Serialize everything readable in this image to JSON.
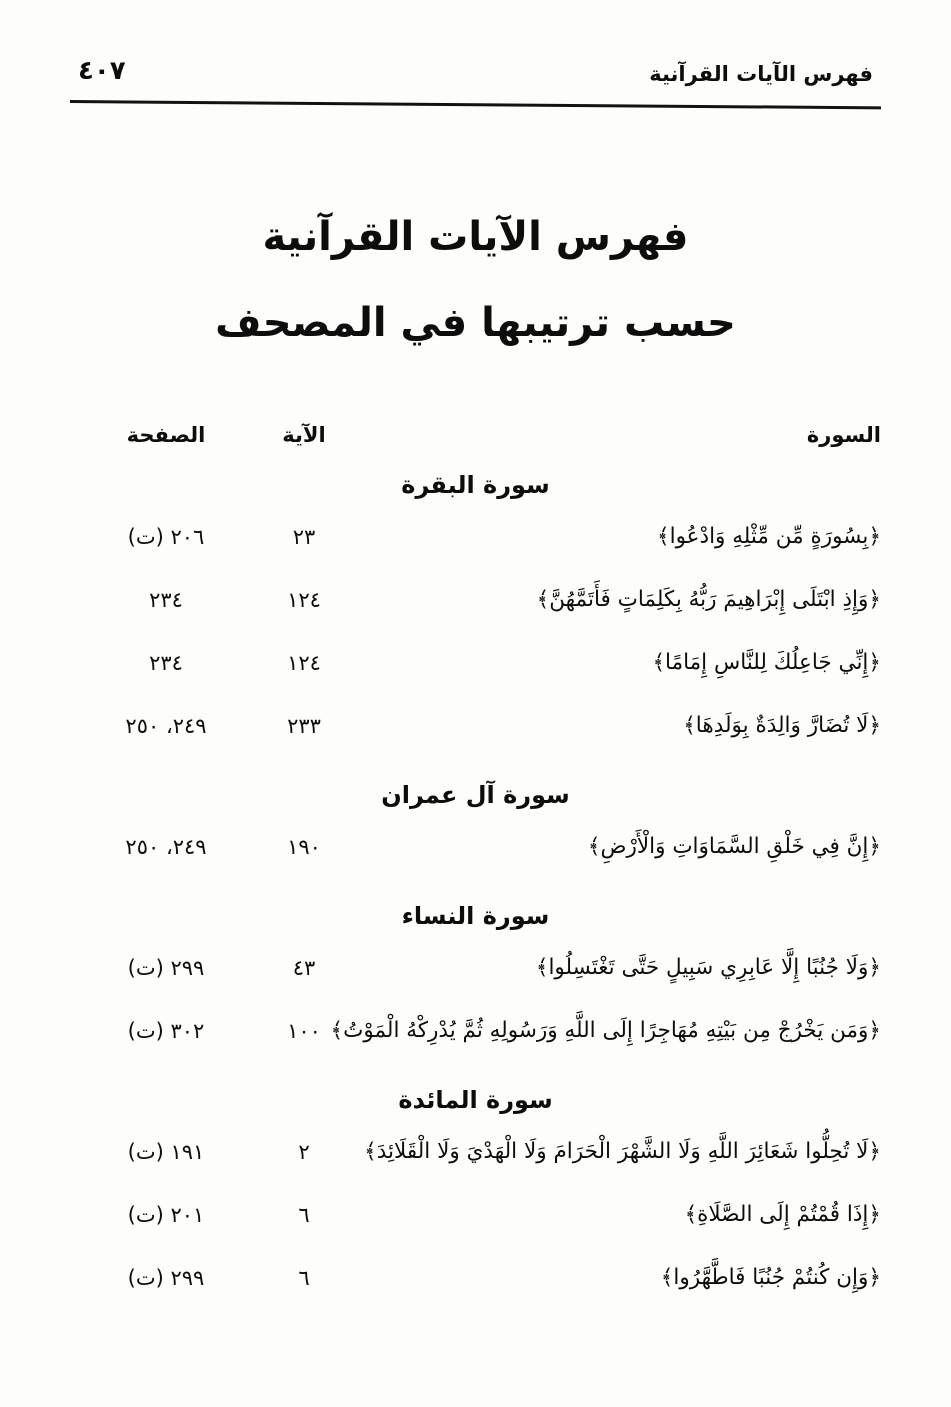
{
  "header": {
    "folio_number": "٤٠٧",
    "running_title": "فهرس الآيات القرآنية"
  },
  "title": {
    "line1": "فهرس الآيات القرآنية",
    "line2": "حسب ترتيبها في المصحف"
  },
  "columns": {
    "surah": "السورة",
    "aya": "الآية",
    "page": "الصفحة"
  },
  "sections": [
    {
      "name": "سورة البقرة",
      "rows": [
        {
          "verse": "﴿بِسُورَةٍ مِّن مِّثْلِهِ وَادْعُوا﴾",
          "aya": "٢٣",
          "page": "٢٠٦ (ت)"
        },
        {
          "verse": "﴿وَإِذِ ابْتَلَى إِبْرَاهِيمَ رَبُّهُ بِكَلِمَاتٍ فَأَتَمَّهُنَّ﴾",
          "aya": "١٢٤",
          "page": "٢٣٤"
        },
        {
          "verse": "﴿إِنِّي جَاعِلُكَ لِلنَّاسِ إِمَامًا﴾",
          "aya": "١٢٤",
          "page": "٢٣٤"
        },
        {
          "verse": "﴿لَا تُضَارَّ وَالِدَةٌ بِوَلَدِهَا﴾",
          "aya": "٢٣٣",
          "page": "٢٤٩، ٢٥٠"
        }
      ]
    },
    {
      "name": "سورة آل عمران",
      "rows": [
        {
          "verse": "﴿إِنَّ فِي خَلْقِ السَّمَاوَاتِ وَالْأَرْضِ﴾",
          "aya": "١٩٠",
          "page": "٢٤٩، ٢٥٠"
        }
      ]
    },
    {
      "name": "سورة النساء",
      "rows": [
        {
          "verse": "﴿وَلَا جُنُبًا إِلَّا عَابِرِي سَبِيلٍ حَتَّى تَغْتَسِلُوا﴾",
          "aya": "٤٣",
          "page": "٢٩٩ (ت)"
        },
        {
          "verse": "﴿وَمَن يَخْرُجْ مِن بَيْتِهِ مُهَاجِرًا إِلَى اللَّهِ وَرَسُولِهِ ثُمَّ يُدْرِكْهُ الْمَوْتُ﴾",
          "aya": "١٠٠",
          "page": "٣٠٢ (ت)"
        }
      ]
    },
    {
      "name": "سورة المائدة",
      "rows": [
        {
          "verse": "﴿لَا تُحِلُّوا شَعَائِرَ اللَّهِ وَلَا الشَّهْرَ الْحَرَامَ وَلَا الْهَدْيَ وَلَا الْقَلَائِدَ﴾",
          "aya": "٢",
          "page": "١٩١ (ت)"
        },
        {
          "verse": "﴿إِذَا قُمْتُمْ إِلَى الصَّلَاةِ﴾",
          "aya": "٦",
          "page": "٢٠١ (ت)"
        },
        {
          "verse": "﴿وَإِن كُنتُمْ جُنُبًا فَاطَّهَّرُوا﴾",
          "aya": "٦",
          "page": "٢٩٩ (ت)"
        }
      ]
    }
  ]
}
